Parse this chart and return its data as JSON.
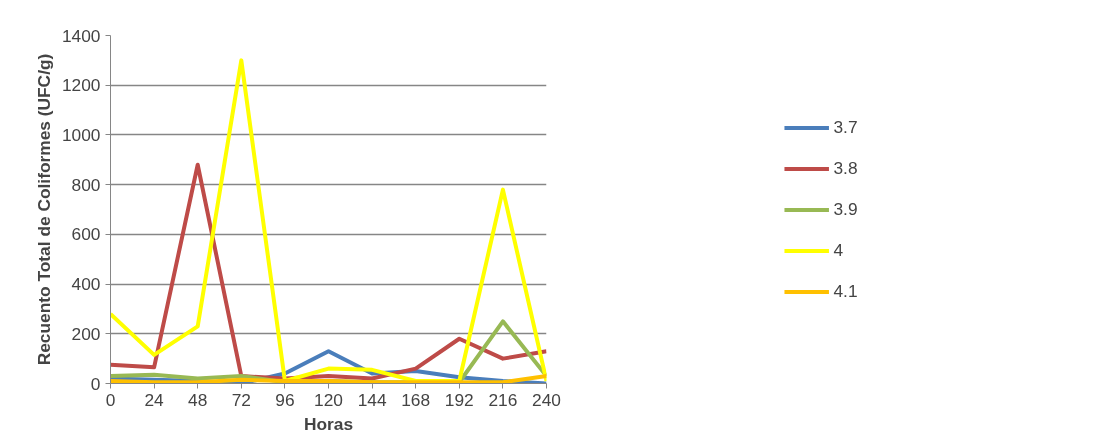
{
  "chart_data": {
    "type": "line",
    "xlabel": "Horas",
    "ylabel": "Recuento Total de Coliformes (UFC/g)",
    "categories": [
      "0",
      "24",
      "48",
      "72",
      "96",
      "120",
      "144",
      "168",
      "192",
      "216",
      "240"
    ],
    "series": [
      {
        "name": "3.7",
        "color": "#4a7ebb",
        "values": [
          20,
          15,
          10,
          0,
          40,
          130,
          40,
          50,
          25,
          10,
          0
        ]
      },
      {
        "name": "3.8",
        "color": "#be4b48",
        "values": [
          75,
          65,
          880,
          30,
          20,
          30,
          20,
          60,
          180,
          100,
          130
        ]
      },
      {
        "name": "3.9",
        "color": "#98b954",
        "values": [
          30,
          35,
          20,
          30,
          5,
          10,
          5,
          5,
          5,
          250,
          30
        ]
      },
      {
        "name": "4",
        "color": "#ffff00",
        "values": [
          280,
          115,
          230,
          1300,
          10,
          60,
          55,
          10,
          10,
          780,
          10
        ]
      },
      {
        "name": "4.1",
        "color": "#ffc000",
        "values": [
          10,
          5,
          5,
          15,
          10,
          10,
          5,
          5,
          5,
          5,
          30
        ]
      }
    ],
    "ylim": [
      0,
      1400
    ],
    "yticks": [
      0,
      200,
      400,
      600,
      800,
      1000,
      1200,
      1400
    ],
    "grid": "y",
    "legend": "right",
    "marker": "none",
    "line_style": "solid"
  }
}
